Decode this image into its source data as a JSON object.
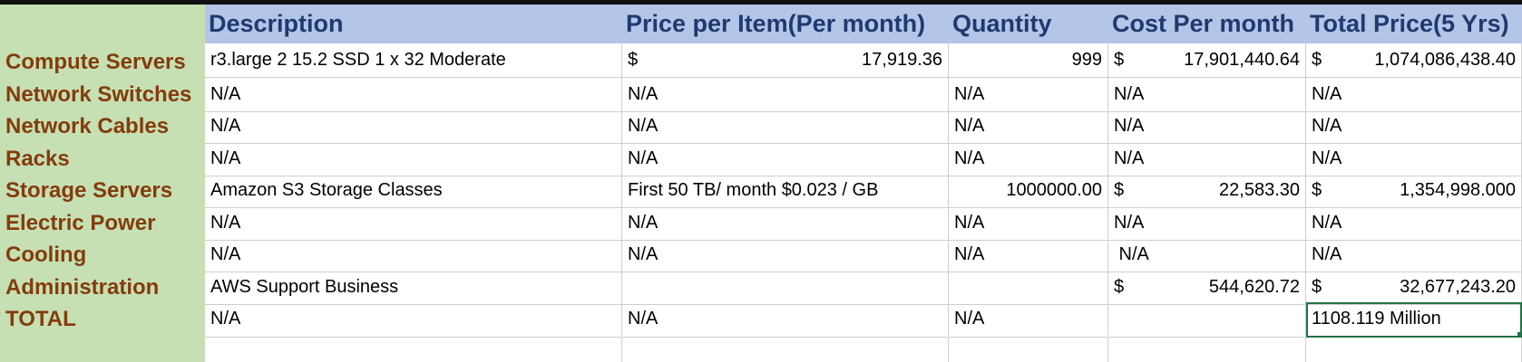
{
  "colors": {
    "header_bg": "#b4c6e7",
    "rowlabel_bg": "#c6e0b4",
    "header_text": "#1f3a70",
    "rowlabel_text": "#843c0c",
    "selection": "#217346"
  },
  "headers": [
    "Description",
    "Price per Item(Per month)",
    "Quantity",
    "Cost Per month",
    "Total Price(5 Yrs)"
  ],
  "rows": [
    {
      "label": "Compute Servers",
      "description": "r3.large 2 15.2 SSD 1 x 32 Moderate",
      "price_cur": "$",
      "price": "17,919.36",
      "quantity": "999",
      "cost_cur": "$",
      "cost": "17,901,440.64",
      "total_cur": "$",
      "total": "1,074,086,438.40"
    },
    {
      "label": "Network Switches",
      "description": "N/A",
      "price": "N/A",
      "quantity": "N/A",
      "cost": "N/A",
      "total": "N/A"
    },
    {
      "label": "Network Cables",
      "description": "N/A",
      "price": "N/A",
      "quantity": "N/A",
      "cost": "N/A",
      "total": "N/A"
    },
    {
      "label": "Racks",
      "description": "N/A",
      "price": "N/A",
      "quantity": "N/A",
      "cost": "N/A",
      "total": "N/A"
    },
    {
      "label": "Storage Servers",
      "description": "Amazon S3 Storage Classes",
      "price": "First 50 TB/ month $0.023 / GB",
      "quantity": "1000000.00",
      "cost_cur": "$",
      "cost": "22,583.30",
      "total_cur": "$",
      "total": "1,354,998.000"
    },
    {
      "label": "Electric Power",
      "description": "N/A",
      "price": "N/A",
      "quantity": "N/A",
      "cost": "N/A",
      "total": "N/A"
    },
    {
      "label": "Cooling",
      "description": "N/A",
      "price": "N/A",
      "quantity": "N/A",
      "cost": " N/A",
      "total": "N/A"
    },
    {
      "label": "Administration",
      "description": "AWS Support Business",
      "price": "",
      "quantity": "",
      "cost_cur": "$",
      "cost": "544,620.72",
      "total_cur": "$",
      "total": "32,677,243.20"
    },
    {
      "label": "TOTAL",
      "description": "N/A",
      "price": "N/A",
      "quantity": "N/A",
      "cost": "",
      "total": "1108.119 Million"
    }
  ]
}
